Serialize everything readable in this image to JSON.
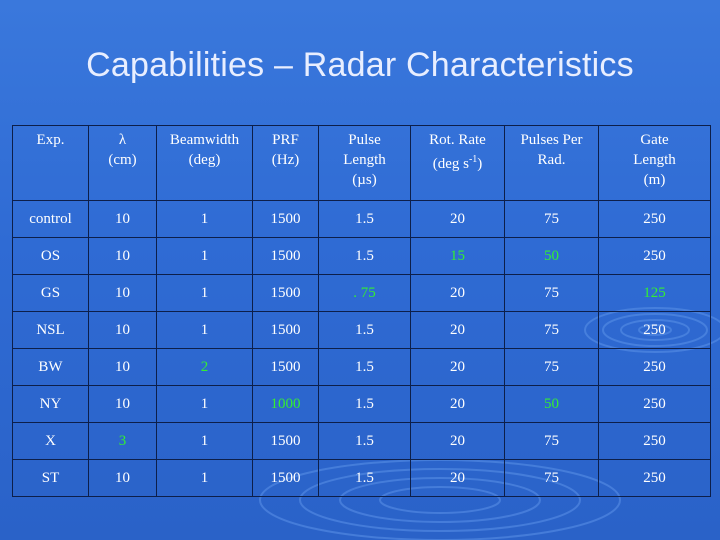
{
  "title": "Capabilities – Radar Characteristics",
  "headers": [
    [
      "Exp."
    ],
    [
      "λ",
      "(cm)"
    ],
    [
      "Beamwidth",
      "(deg)"
    ],
    [
      "PRF",
      "(Hz)"
    ],
    [
      "Pulse",
      "Length",
      "(µs)"
    ],
    [
      "Rot. Rate",
      "(deg s",
      "-1",
      ")"
    ],
    [
      "Pulses Per",
      "Rad."
    ],
    [
      "Gate",
      "Length",
      "(m)"
    ]
  ],
  "rows": [
    {
      "cells": [
        "control",
        "10",
        "1",
        "1500",
        "1.5",
        "20",
        "75",
        "250"
      ],
      "highlight": []
    },
    {
      "cells": [
        "OS",
        "10",
        "1",
        "1500",
        "1.5",
        "15",
        "50",
        "250"
      ],
      "highlight": [
        5,
        6
      ]
    },
    {
      "cells": [
        "GS",
        "10",
        "1",
        "1500",
        ". 75",
        "20",
        "75",
        "125"
      ],
      "highlight": [
        4,
        7
      ]
    },
    {
      "cells": [
        "NSL",
        "10",
        "1",
        "1500",
        "1.5",
        "20",
        "75",
        "250"
      ],
      "highlight": []
    },
    {
      "cells": [
        "BW",
        "10",
        "2",
        "1500",
        "1.5",
        "20",
        "75",
        "250"
      ],
      "highlight": [
        2
      ]
    },
    {
      "cells": [
        "NY",
        "10",
        "1",
        "1000",
        "1.5",
        "20",
        "50",
        "250"
      ],
      "highlight": [
        3,
        6
      ]
    },
    {
      "cells": [
        "X",
        "3",
        "1",
        "1500",
        "1.5",
        "20",
        "75",
        "250"
      ],
      "highlight": [
        1
      ]
    },
    {
      "cells": [
        "ST",
        "10",
        "1",
        "1500",
        "1.5",
        "20",
        "75",
        "250"
      ],
      "highlight": []
    }
  ],
  "colors": {
    "background": "#2f6bd4",
    "text": "#ffffff",
    "highlight": "#33ee33",
    "border": "#0d1f4a"
  }
}
